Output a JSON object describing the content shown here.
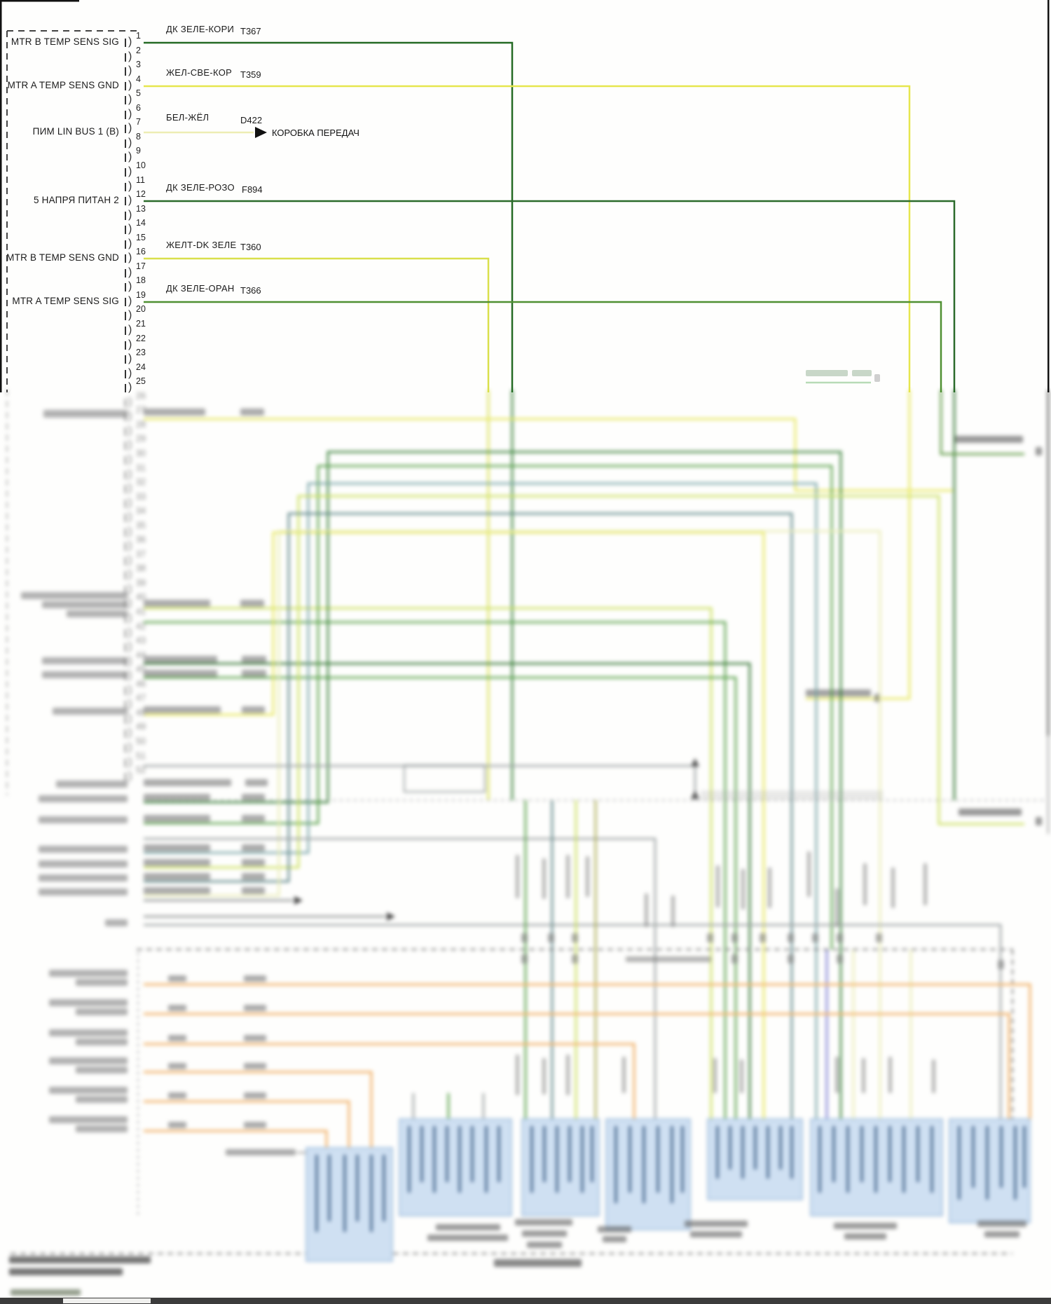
{
  "diagram": {
    "kind": "automotive wiring diagram",
    "module_pins": {
      "first": 1,
      "last": 25,
      "continued_first": 26,
      "continued_last": 52
    },
    "signals": [
      {
        "pin": 1,
        "label": "MTR B TEMP SENS SIG",
        "wire": "ДК ЗЕЛЕ-КОРИ",
        "code": "T367",
        "color": "#256b25"
      },
      {
        "pin": 4,
        "label": "MTR A TEMP SENS GND",
        "wire": "ЖЕЛ-СВЕ-КОР",
        "code": "T359",
        "color": "#e6e64e"
      },
      {
        "pin": 8,
        "label": "ПИМ LIN BUS 1 (B)",
        "wire": "БЕЛ-ЖЁЛ",
        "code": "D422",
        "color": "#ededb4",
        "destination": "КОРОБКА ПЕРЕДАЧ"
      },
      {
        "pin": 12,
        "label": "5 НАПРЯ ПИТАН 2",
        "wire": "ДК ЗЕЛЕ-РОЗО",
        "code": "F894",
        "color": "#2b6b2b"
      },
      {
        "pin": 16,
        "label": "MTR B TEMP SENS GND",
        "wire": "ЖЕЛТ-DK ЗЕЛЕ",
        "code": "T360",
        "color": "#d9e04c"
      },
      {
        "pin": 19,
        "label": "MTR A TEMP SENS SIG",
        "wire": "ДК ЗЕЛЕ-ОРАН",
        "code": "T366",
        "color": "#4f9032"
      }
    ],
    "colors": {
      "dark_green": "#256b25",
      "green": "#4f9032",
      "mid_green": "#4c9a3c",
      "yellow": "#e6e64e",
      "yellow_green": "#d9e04c",
      "pale_yellow": "#ededb4",
      "nest_pale_yellow": "#e9ecb0",
      "teal": "#6f9ea0",
      "dark_teal": "#557f80",
      "olive": "#a8a84a",
      "gray_wire": "#9aa0a0",
      "orange": "#f2b36a",
      "blue_violet": "#7374d2",
      "box_fill": "#cfe0f2",
      "box_border": "#93b5d8",
      "box_text": "#46688f"
    },
    "note": "Lower portion of source image is out of focus; unreadable text is represented by blurred placeholder blocks only."
  }
}
